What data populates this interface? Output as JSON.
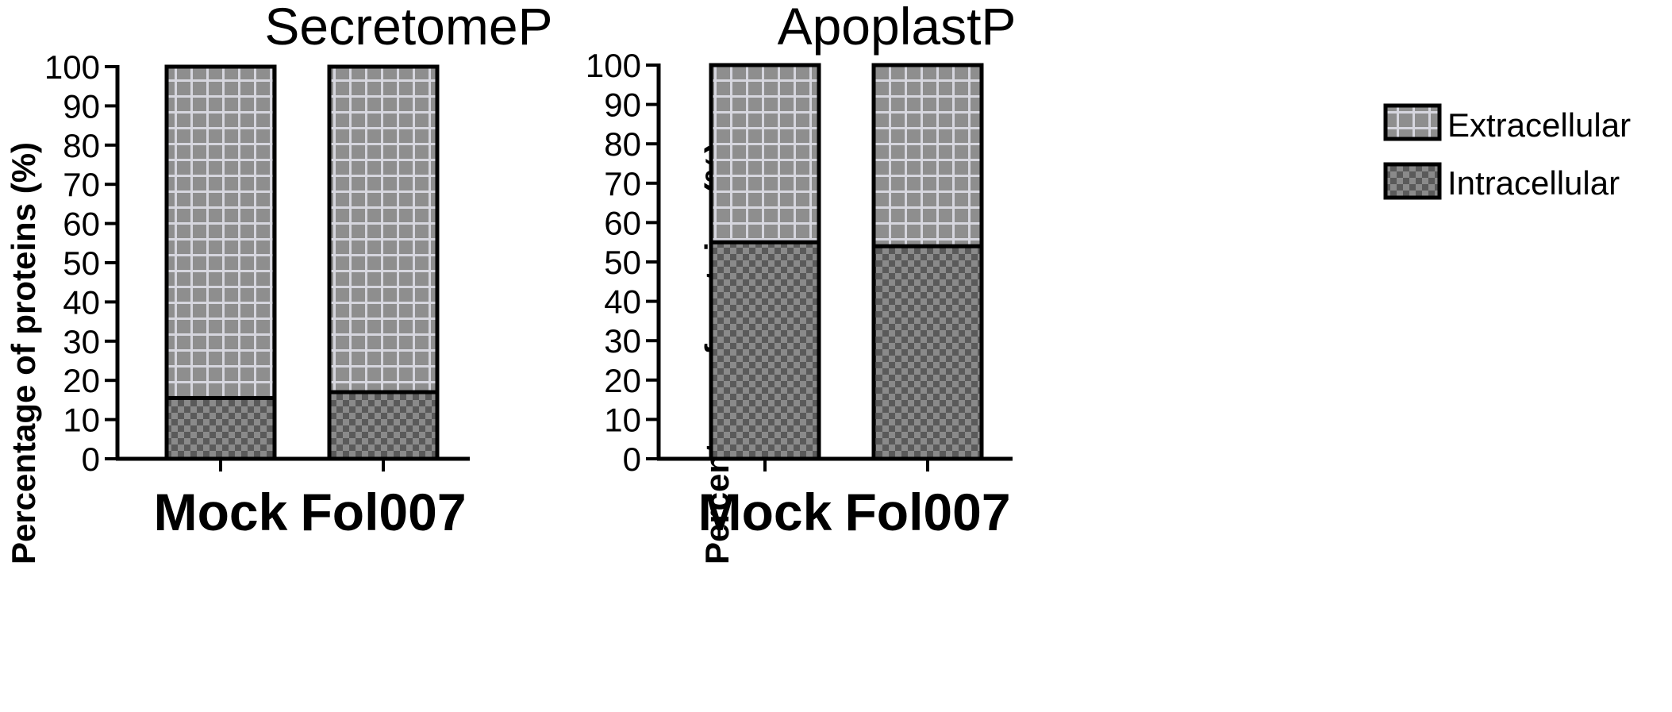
{
  "chart_data": [
    {
      "type": "bar",
      "stacked": true,
      "title": "SecretomeP",
      "ylabel": "Percentage of proteins (%)",
      "ylim": [
        0,
        100
      ],
      "yticks": [
        "0",
        "10",
        "20",
        "30",
        "40",
        "50",
        "60",
        "70",
        "80",
        "90",
        "100"
      ],
      "categories": [
        "Mock",
        "Fol007"
      ],
      "series": [
        {
          "name": "Intracellular",
          "values": [
            15.5,
            17
          ]
        },
        {
          "name": "Extracellular",
          "values": [
            84.5,
            83
          ]
        }
      ]
    },
    {
      "type": "bar",
      "stacked": true,
      "title": "ApoplastP",
      "ylabel": "Percentage of proteins (%)",
      "ylim": [
        0,
        100
      ],
      "yticks": [
        "0",
        "10",
        "20",
        "30",
        "40",
        "50",
        "60",
        "70",
        "80",
        "90",
        "100"
      ],
      "categories": [
        "Mock",
        "Fol007"
      ],
      "series": [
        {
          "name": "Intracellular",
          "values": [
            55,
            54
          ]
        },
        {
          "name": "Extracellular",
          "values": [
            45,
            46
          ]
        }
      ]
    }
  ],
  "legend": {
    "position": "right",
    "items": [
      {
        "label": "Extracellular",
        "pattern": "grid",
        "color": "#8e8e8e",
        "line": "#d6d6de"
      },
      {
        "label": "Intracellular",
        "pattern": "checker",
        "color": "#5a5a5a",
        "color2": "#8a8a8a"
      }
    ]
  }
}
